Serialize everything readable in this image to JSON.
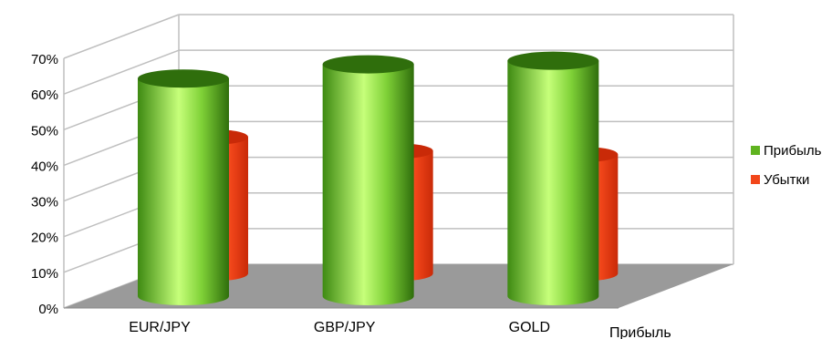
{
  "chart_data": {
    "type": "bar",
    "categories": [
      "EUR/JPY",
      "GBP/JPY",
      "GOLD"
    ],
    "series": [
      {
        "name": "Прибыль",
        "values": [
          61,
          65,
          66
        ]
      },
      {
        "name": "Убытки",
        "values": [
          39,
          35,
          34
        ]
      }
    ],
    "ylim": [
      0,
      70
    ],
    "yticks": [
      "0%",
      "10%",
      "20%",
      "30%",
      "40%",
      "50%",
      "60%",
      "70%"
    ],
    "depth_axis_label": "Прибыль",
    "grid": true,
    "legend_position": "right",
    "colors": {
      "series0": "#5fb31f",
      "series0_light": "#c6ff7a",
      "series0_dark": "#2f6e0c",
      "series1": "#f2461a",
      "series1_light": "#ffb27a",
      "series1_dark": "#c92a08",
      "floor": "#9a9a9a",
      "grid": "#bfbfbf"
    }
  }
}
